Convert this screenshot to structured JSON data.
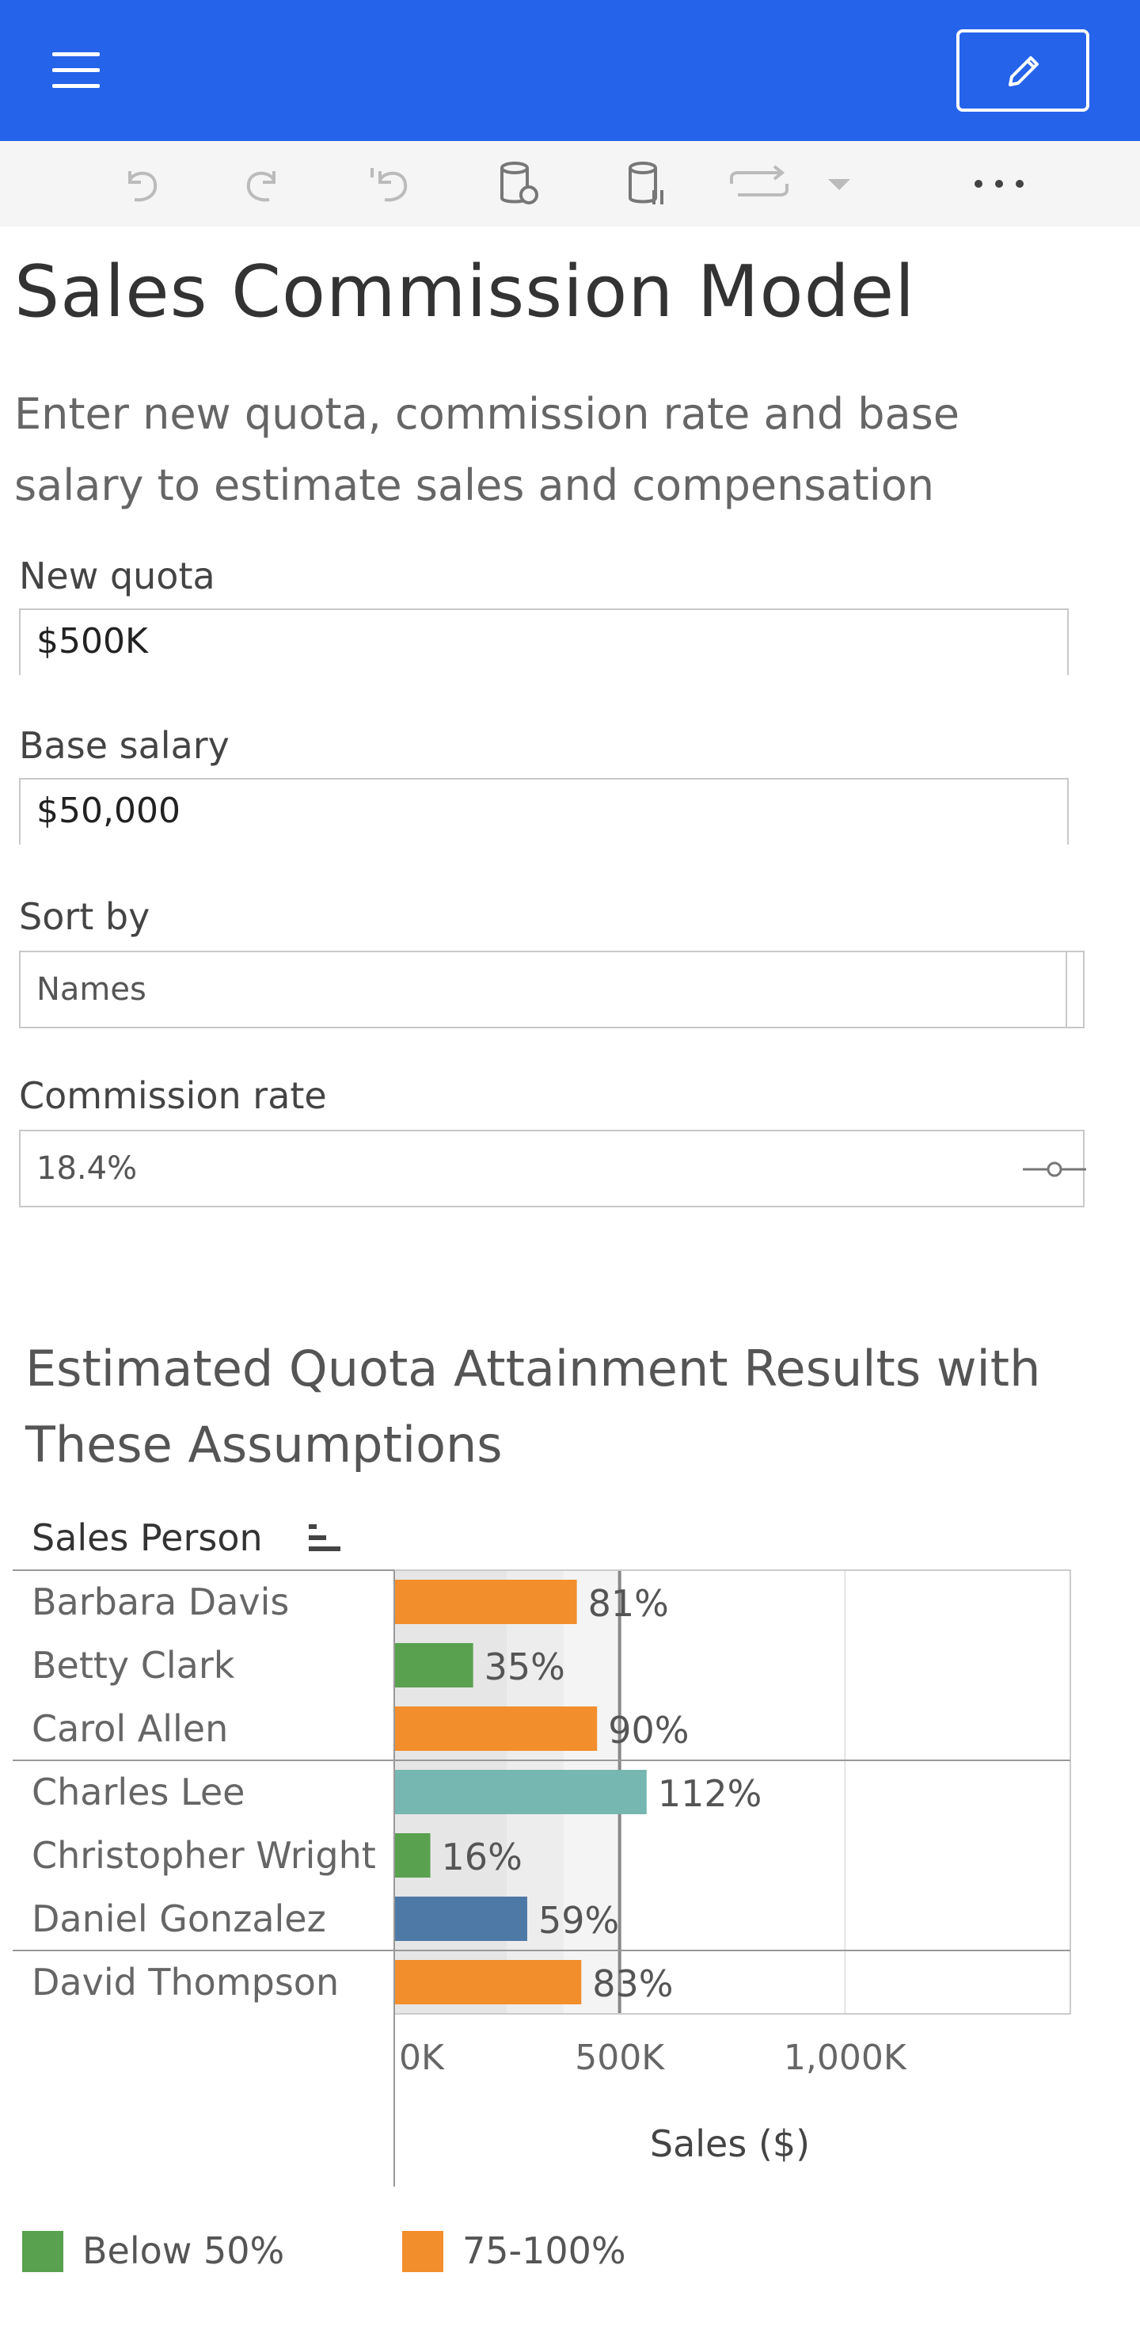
{
  "header": {
    "menu_icon": "hamburger-menu-icon",
    "edit_icon": "pencil-icon"
  },
  "toolbar": {
    "icons": [
      "undo-icon",
      "redo-icon",
      "revert-icon",
      "refresh-data-icon",
      "pause-data-icon",
      "swap-icon",
      "dropdown-arrow-icon",
      "more-options-icon"
    ]
  },
  "page": {
    "title": "Sales Commission Model",
    "subtitle": "Enter new quota, commission rate and base salary to estimate sales and compensation"
  },
  "params": {
    "quota": {
      "label": "New quota",
      "value": "$500K"
    },
    "base_salary": {
      "label": "Base salary",
      "value": "$50,000"
    },
    "sort_by": {
      "label": "Sort by",
      "value": "Names"
    },
    "commission_rate": {
      "label": "Commission rate",
      "value": "18.4%"
    }
  },
  "chart": {
    "title": "Estimated Quota Attainment Results with These Assumptions",
    "row_header": "Sales Person",
    "sort_icon": "sort-icon"
  },
  "chart_data": {
    "type": "bar",
    "orientation": "horizontal",
    "title": "Estimated Quota Attainment Results with These Assumptions",
    "xlabel": "Sales ($)",
    "ylabel": "Sales Person",
    "x_ticks": [
      "0K",
      "500K",
      "1,000K"
    ],
    "xlim": [
      0,
      1500
    ],
    "quota_line": 500,
    "categories": [
      "Barbara Davis",
      "Betty Clark",
      "Carol Allen",
      "Charles Lee",
      "Christopher Wright",
      "Daniel Gonzalez",
      "David Thompson"
    ],
    "values": [
      405,
      175,
      450,
      560,
      80,
      295,
      415
    ],
    "labels": [
      "81%",
      "35%",
      "90%",
      "112%",
      "16%",
      "59%",
      "83%"
    ],
    "colors": [
      "#f28e2b",
      "#59a14f",
      "#f28e2b",
      "#76b7b2",
      "#59a14f",
      "#4e79a7",
      "#f28e2b"
    ],
    "band_colors": [
      "#e6e6e6",
      "#ededed",
      "#f4f4f4"
    ],
    "band_edges": [
      0,
      250,
      375,
      500
    ]
  },
  "legend": [
    {
      "label": "Below 50%",
      "color": "#59a14f"
    },
    {
      "label": "75-100%",
      "color": "#f28e2b"
    }
  ]
}
